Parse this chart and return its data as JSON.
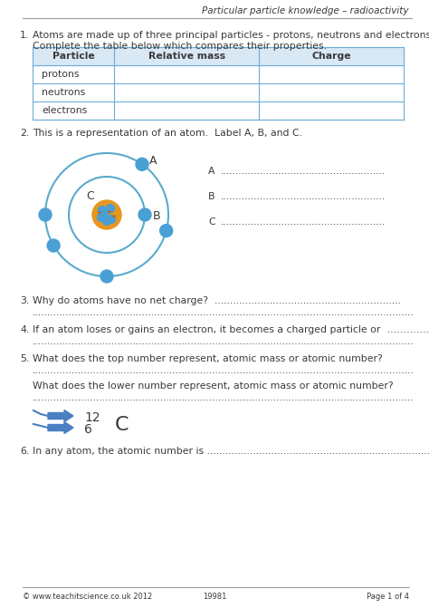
{
  "title": "Particular particle knowledge – radioactivity",
  "bg_color": "#ffffff",
  "text_color": "#3a3a3a",
  "table_border_color": "#6baed6",
  "table_header_bg": "#d9e8f5",
  "table_headers": [
    "Particle",
    "Relative mass",
    "Charge"
  ],
  "table_rows": [
    "protons",
    "neutrons",
    "electrons"
  ],
  "footer_left": "© www.teachitscience.co.uk 2012",
  "footer_mid": "19981",
  "footer_right": "Page 1 of 4",
  "nucleus_orange": "#e8961e",
  "nucleus_blue": "#4a9fd4",
  "electron_color": "#4a9fd4",
  "orbit_color": "#5aabcc",
  "arrow_color": "#4a7fc1",
  "dots": ".............................................................................................................................",
  "dots_short": "......................................................",
  "fs": 7.8,
  "fs_bold": 7.8
}
